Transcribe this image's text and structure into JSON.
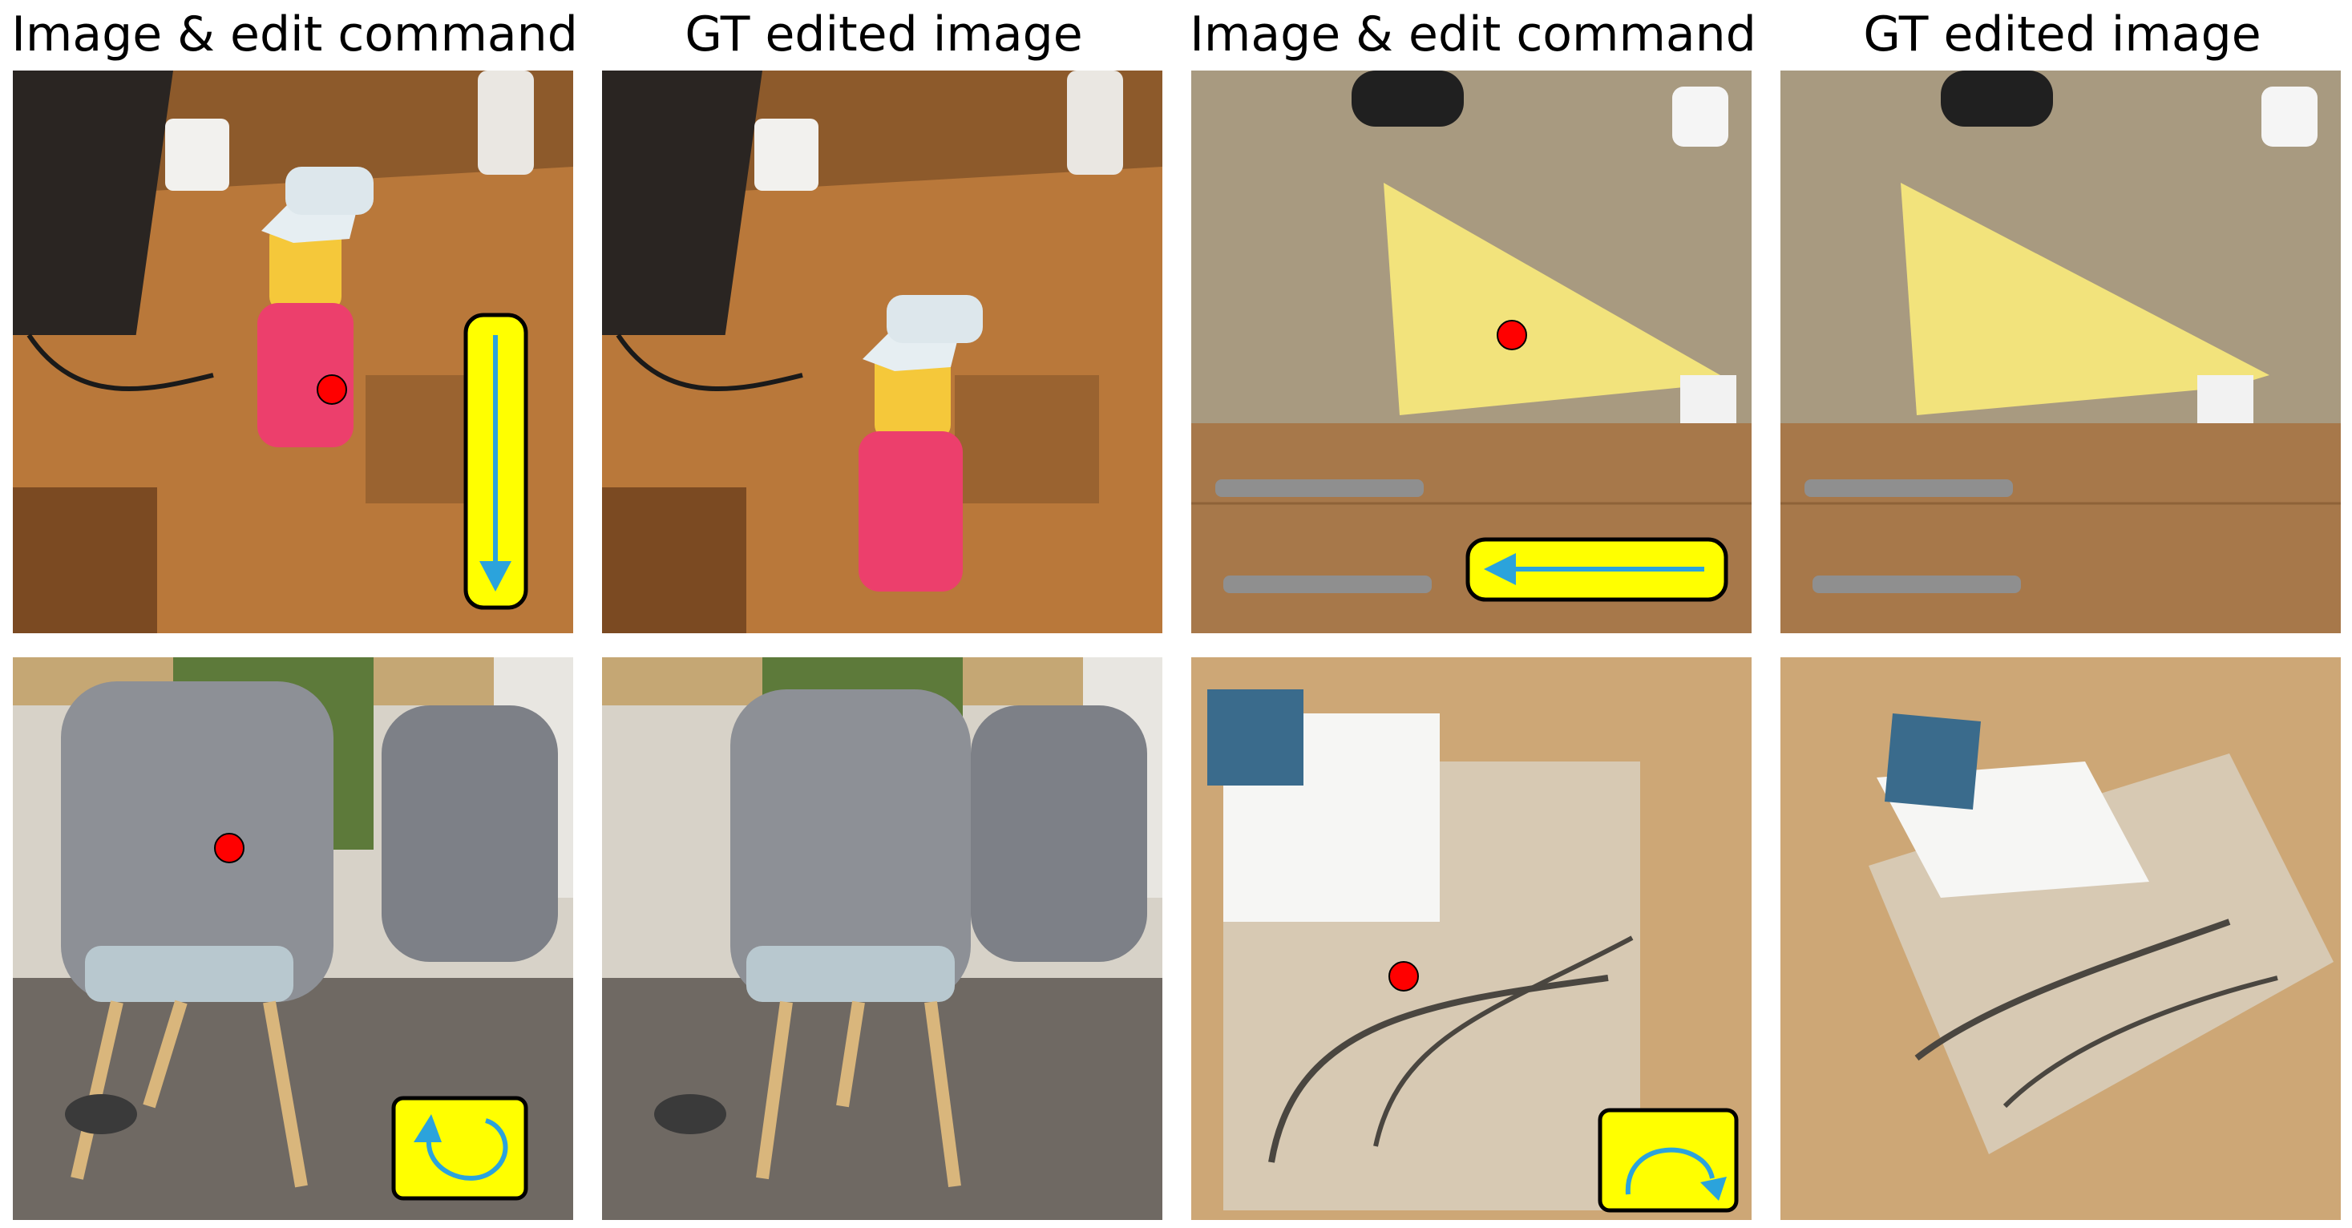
{
  "figure": {
    "column_headers": [
      "Image & edit command",
      "GT edited image",
      "Image & edit command",
      "GT edited image"
    ],
    "rows": [
      {
        "panels": [
          {
            "content": "spray-bottle-scene",
            "overlays": [
              "red-dot",
              "down-arrow-command"
            ]
          },
          {
            "content": "spray-bottle-edited",
            "overlays": []
          },
          {
            "content": "yellow-cloth-scene",
            "overlays": [
              "red-dot",
              "left-arrow-command"
            ]
          },
          {
            "content": "yellow-cloth-edited",
            "overlays": []
          }
        ]
      },
      {
        "panels": [
          {
            "content": "chair-scene",
            "overlays": [
              "red-dot",
              "ccw-rotate-command"
            ]
          },
          {
            "content": "chair-edited",
            "overlays": []
          },
          {
            "content": "book-box-scene",
            "overlays": [
              "red-dot",
              "cw-rotate-command"
            ]
          },
          {
            "content": "book-box-edited",
            "overlays": []
          }
        ]
      }
    ],
    "colors": {
      "command_box_fill": "#ffff00",
      "command_box_stroke": "#000000",
      "arrow": "#2ba3dc",
      "dot": "#ff0000"
    }
  }
}
